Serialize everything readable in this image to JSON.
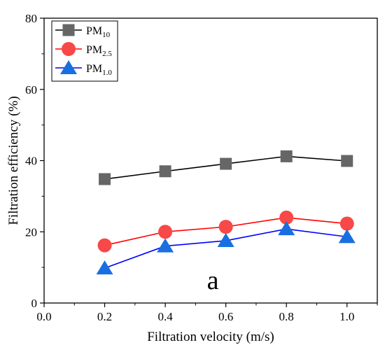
{
  "chart_data": {
    "type": "line",
    "xlabel": "Filtration velocity (m/s)",
    "ylabel": "Filtration efficiency (%)",
    "xlim": [
      0.0,
      1.1
    ],
    "ylim": [
      0,
      80
    ],
    "xticks": [
      0.0,
      0.2,
      0.4,
      0.6,
      0.8,
      1.0
    ],
    "yticks": [
      0,
      20,
      40,
      60,
      80
    ],
    "x_tick_labels": [
      "0.0",
      "0.2",
      "0.4",
      "0.6",
      "0.8",
      "1.0"
    ],
    "y_tick_labels": [
      "0",
      "20",
      "40",
      "60",
      "80"
    ],
    "x": [
      0.2,
      0.4,
      0.6,
      0.8,
      1.0
    ],
    "grid": false,
    "legend_position": "top-left",
    "annotation": "a",
    "series": [
      {
        "name": "PM10",
        "label_base": "PM",
        "label_sub": "10",
        "values": [
          34.8,
          37.0,
          39.1,
          41.2,
          39.9
        ],
        "line_color": "#000000",
        "marker_color": "#666666",
        "marker": "square"
      },
      {
        "name": "PM2.5",
        "label_base": "PM",
        "label_sub": "2.5",
        "values": [
          16.2,
          20.0,
          21.4,
          24.0,
          22.3
        ],
        "line_color": "#ff0000",
        "marker_color": "#f84848",
        "marker": "circle"
      },
      {
        "name": "PM1.0",
        "label_base": "PM",
        "label_sub": "1.0",
        "values": [
          9.8,
          16.0,
          17.5,
          20.8,
          18.6
        ],
        "line_color": "#0000ff",
        "marker_color": "#1a6fe0",
        "marker": "triangle"
      }
    ]
  }
}
